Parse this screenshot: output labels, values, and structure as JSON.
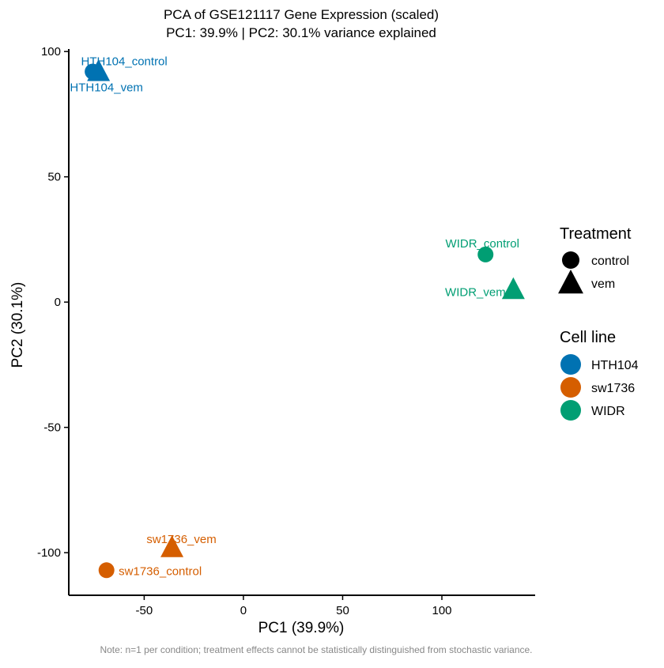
{
  "chart_data": {
    "type": "scatter",
    "title": "PCA of GSE121117 Gene Expression (scaled)",
    "subtitle": "PC1: 39.9% | PC2: 30.1% variance explained",
    "xlabel": "PC1 (39.9%)",
    "ylabel": "PC2 (30.1%)",
    "xlim": [
      -88,
      147
    ],
    "ylim": [
      -117,
      101
    ],
    "xticks": [
      -50,
      0,
      50,
      100
    ],
    "yticks": [
      -100,
      -50,
      0,
      50,
      100
    ],
    "grid": false,
    "points": [
      {
        "label": "HTH104_control",
        "x": -76,
        "y": 92,
        "cell_line": "HTH104",
        "treatment": "control"
      },
      {
        "label": "HTH104_vem",
        "x": -73,
        "y": 92,
        "cell_line": "HTH104",
        "treatment": "vem"
      },
      {
        "label": "WIDR_control",
        "x": 122,
        "y": 19,
        "cell_line": "WIDR",
        "treatment": "control"
      },
      {
        "label": "WIDR_vem",
        "x": 136,
        "y": 5,
        "cell_line": "WIDR",
        "treatment": "vem"
      },
      {
        "label": "sw1736_vem",
        "x": -36,
        "y": -98,
        "cell_line": "sw1736",
        "treatment": "vem"
      },
      {
        "label": "sw1736_control",
        "x": -69,
        "y": -107,
        "cell_line": "sw1736",
        "treatment": "control"
      }
    ],
    "legend": {
      "placement": "right",
      "treatment_title": "Treatment",
      "treatment_items": [
        {
          "name": "control",
          "shape": "circle"
        },
        {
          "name": "vem",
          "shape": "triangle"
        }
      ],
      "cell_line_title": "Cell line",
      "cell_line_items": [
        {
          "name": "HTH104",
          "color": "#0072B2"
        },
        {
          "name": "sw1736",
          "color": "#D55E00"
        },
        {
          "name": "WIDR",
          "color": "#009E73"
        }
      ]
    },
    "note": "Note: n=1 per condition; treatment effects cannot be statistically distinguished from stochastic variance."
  }
}
